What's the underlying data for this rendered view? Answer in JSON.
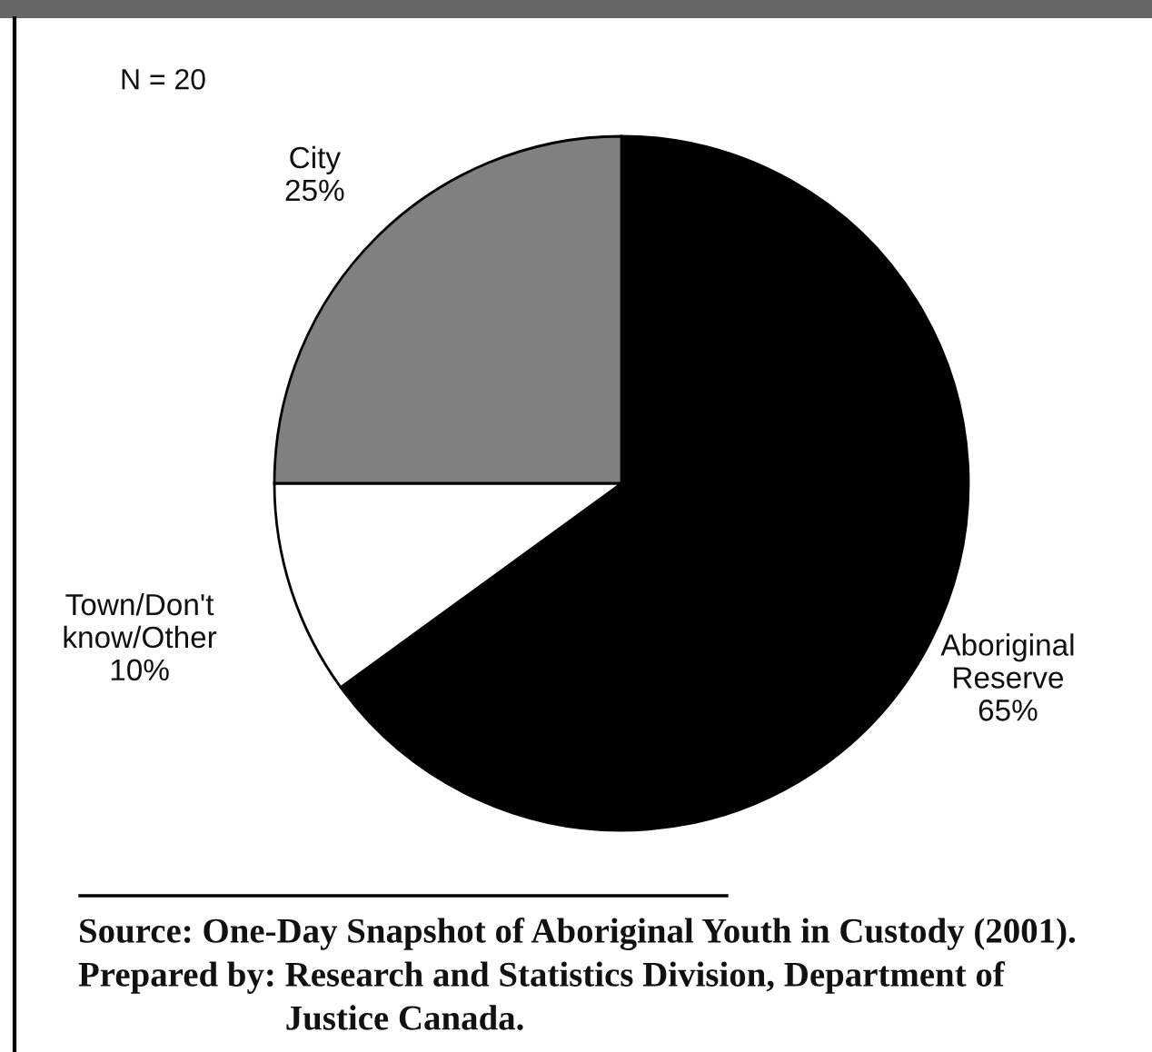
{
  "chart_data": {
    "type": "pie",
    "categories": [
      "Aboriginal Reserve",
      "Town/Don't know/Other",
      "City"
    ],
    "values": [
      65,
      10,
      25
    ],
    "colors": [
      "#000000",
      "#ffffff",
      "#808080"
    ],
    "value_labels": [
      "65%",
      "10%",
      "25%"
    ],
    "annotations": [
      "N = 20",
      "Source: One-Day Snapshot of Aboriginal Youth in Custody (2001).",
      "Prepared by: Research and Statistics Division, Department of Justice Canada."
    ]
  }
}
